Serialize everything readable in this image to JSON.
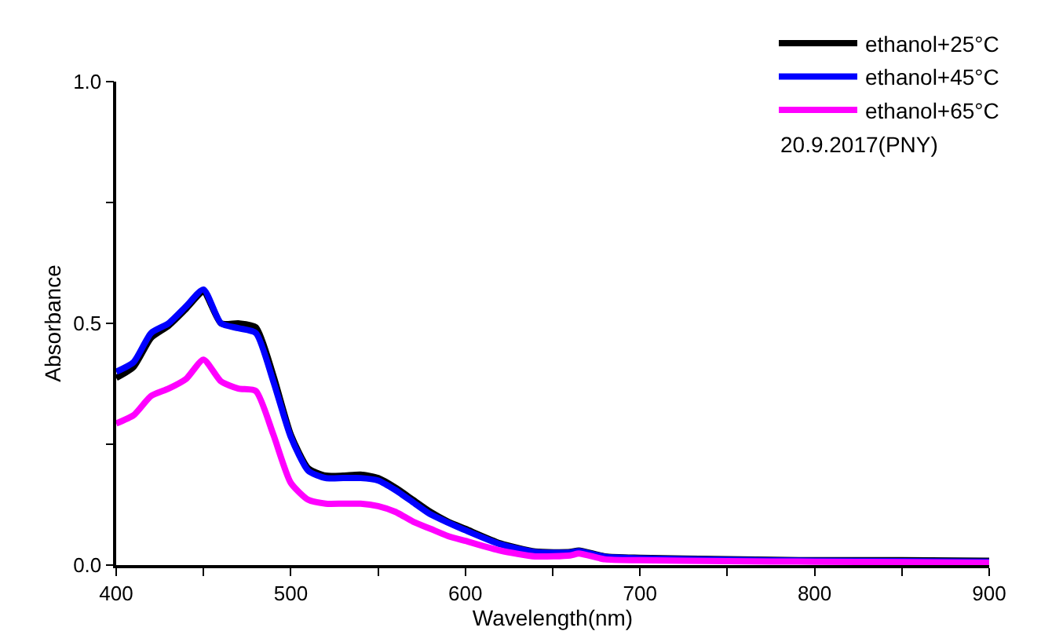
{
  "chart_data": {
    "type": "line",
    "xlabel": "Wavelength(nm)",
    "ylabel": "Absorbance",
    "x": [
      400,
      410,
      420,
      430,
      440,
      450,
      460,
      470,
      480,
      490,
      500,
      510,
      520,
      530,
      540,
      550,
      560,
      570,
      580,
      590,
      600,
      620,
      640,
      660,
      665,
      680,
      700,
      750,
      800,
      850,
      900
    ],
    "series": [
      {
        "name": "ethanol+25°C",
        "color": "#000000",
        "values": [
          0.387,
          0.41,
          0.47,
          0.495,
          0.53,
          0.565,
          0.5,
          0.5,
          0.492,
          0.392,
          0.27,
          0.2,
          0.185,
          0.185,
          0.187,
          0.18,
          0.16,
          0.135,
          0.11,
          0.09,
          0.075,
          0.045,
          0.028,
          0.027,
          0.03,
          0.018,
          0.015,
          0.012,
          0.01,
          0.01,
          0.009
        ]
      },
      {
        "name": "ethanol+45°C",
        "color": "#0000ff",
        "values": [
          0.4,
          0.42,
          0.48,
          0.5,
          0.535,
          0.57,
          0.5,
          0.49,
          0.48,
          0.38,
          0.265,
          0.195,
          0.18,
          0.18,
          0.18,
          0.175,
          0.155,
          0.13,
          0.105,
          0.088,
          0.072,
          0.043,
          0.027,
          0.026,
          0.029,
          0.017,
          0.014,
          0.011,
          0.009,
          0.008,
          0.007
        ]
      },
      {
        "name": "ethanol+65°C",
        "color": "#ff00ff",
        "values": [
          0.293,
          0.31,
          0.35,
          0.365,
          0.385,
          0.425,
          0.38,
          0.365,
          0.36,
          0.27,
          0.17,
          0.135,
          0.127,
          0.127,
          0.127,
          0.122,
          0.11,
          0.09,
          0.075,
          0.06,
          0.05,
          0.03,
          0.018,
          0.02,
          0.024,
          0.012,
          0.01,
          0.008,
          0.007,
          0.006,
          0.005
        ]
      }
    ],
    "xlim": [
      400,
      900
    ],
    "xticks": [
      400,
      {
        "value": 450,
        "label": null
      },
      500,
      {
        "value": 550,
        "label": null
      },
      600,
      {
        "value": 650,
        "label": null
      },
      700,
      {
        "value": 750,
        "label": null
      },
      800,
      {
        "value": 850,
        "label": null
      },
      900
    ],
    "ylim": [
      0,
      1.0
    ],
    "yticks": [
      {
        "value": 0,
        "label": "0.0"
      },
      {
        "value": 0.25,
        "label": null
      },
      0.5,
      {
        "value": 0.75,
        "label": null
      },
      {
        "value": 1,
        "label": "1.0"
      }
    ],
    "grid": false,
    "legend": "top right",
    "marker": "none",
    "line_style": "solid",
    "annotations": [
      "20.9.2017(PNY)"
    ]
  }
}
